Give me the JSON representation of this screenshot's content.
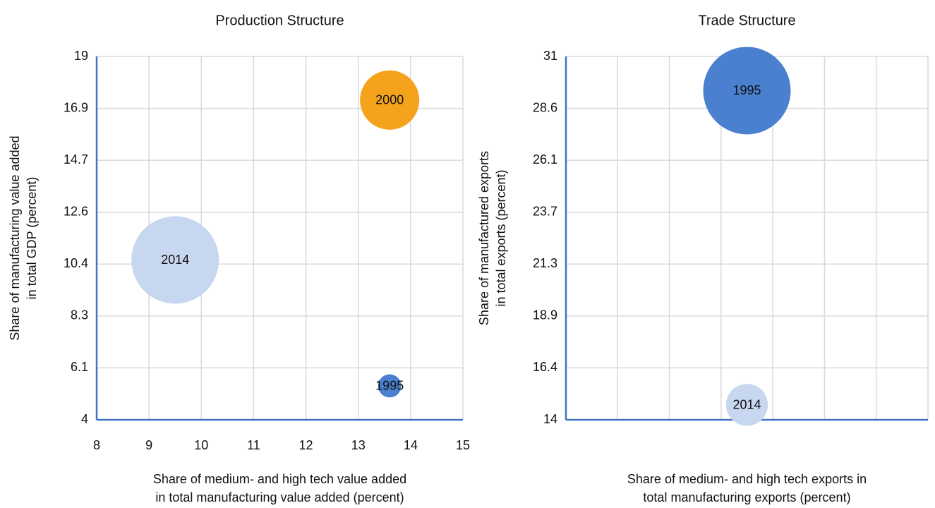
{
  "chart_data": [
    {
      "type": "bubble",
      "title": "Production Structure",
      "xlabel": [
        "Share of medium- and high tech value added",
        "in total manufacturing value added (percent)"
      ],
      "ylabel": [
        "Share of manufacturing value added",
        "in total GDP (percent)"
      ],
      "xlim": [
        8,
        15
      ],
      "xticks": [
        8,
        9,
        10,
        11,
        12,
        13,
        14,
        15
      ],
      "show_xtick_labels": true,
      "ylim": [
        4,
        19
      ],
      "yticks": [
        4,
        {
          "value": 6.142857,
          "label": "6.1"
        },
        {
          "value": 8.285714,
          "label": "8.3"
        },
        {
          "value": 10.428571,
          "label": "10.4"
        },
        {
          "value": 12.571429,
          "label": "12.6"
        },
        {
          "value": 14.714286,
          "label": "14.7"
        },
        {
          "value": 16.857143,
          "label": "16.9"
        },
        19
      ],
      "grid": true,
      "series": [
        {
          "name": "2014",
          "color": "#c6d7ef",
          "x": [
            9.5
          ],
          "values": [
            10.6
          ],
          "sizes": [
            100
          ]
        },
        {
          "name": "2000",
          "color": "#f5a31c",
          "x": [
            13.6
          ],
          "values": [
            17.2
          ],
          "sizes": [
            46
          ]
        },
        {
          "name": "1995",
          "color": "#4a80cf",
          "x": [
            13.6
          ],
          "values": [
            5.4
          ],
          "sizes": [
            7
          ]
        }
      ]
    },
    {
      "type": "bubble",
      "title": "Trade Structure",
      "xlabel": [
        "Share of medium- and high tech exports in",
        "total manufacturing exports (percent)"
      ],
      "ylabel": [
        "Share of manufactured exports",
        "in total exports (percent)"
      ],
      "xlim": [
        0,
        7
      ],
      "xticks": [
        0,
        1,
        2,
        3,
        4,
        5,
        6,
        7
      ],
      "show_xtick_labels": false,
      "ylim": [
        14,
        31
      ],
      "yticks": [
        14,
        {
          "value": 16.428571,
          "label": "16.4"
        },
        {
          "value": 18.857143,
          "label": "18.9"
        },
        {
          "value": 21.285714,
          "label": "21.3"
        },
        {
          "value": 23.714286,
          "label": "23.7"
        },
        {
          "value": 26.142857,
          "label": "26.1"
        },
        {
          "value": 28.571429,
          "label": "28.6"
        },
        31
      ],
      "grid": true,
      "series": [
        {
          "name": "1995",
          "color": "#4a80cf",
          "x": [
            3.5
          ],
          "values": [
            29.4
          ],
          "sizes": [
            55
          ]
        },
        {
          "name": "2014",
          "color": "#c6d7ef",
          "x": [
            3.5
          ],
          "values": [
            14.7
          ],
          "sizes": [
            12.6
          ]
        }
      ]
    }
  ]
}
